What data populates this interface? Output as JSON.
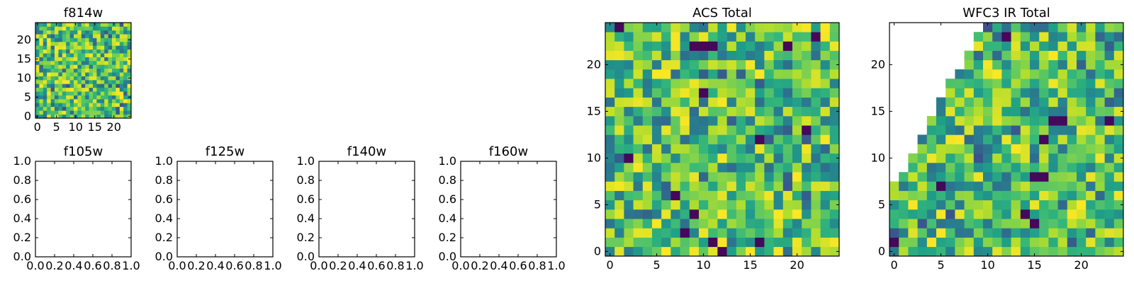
{
  "chart_data": [
    {
      "id": "f814w",
      "type": "heatmap",
      "title": "f814w",
      "xlim": [
        -0.5,
        24.5
      ],
      "ylim": [
        -0.5,
        24.5
      ],
      "xticks": [
        0,
        5,
        10,
        15,
        20
      ],
      "yticks": [
        0,
        5,
        10,
        15,
        20
      ],
      "xtick_labels": [
        "0",
        "5",
        "10",
        "15",
        "20"
      ],
      "ytick_labels": [
        "0",
        "5",
        "10",
        "15",
        "20"
      ],
      "grid_size": 25,
      "colormap": "viridis",
      "pattern": "random",
      "seed": 814
    },
    {
      "id": "f105w",
      "type": "heatmap",
      "title": "f105w",
      "xlim": [
        0,
        1
      ],
      "ylim": [
        0,
        1
      ],
      "xticks": [
        0,
        0.2,
        0.4,
        0.6,
        0.8,
        1.0
      ],
      "yticks": [
        0,
        0.2,
        0.4,
        0.6,
        0.8,
        1.0
      ],
      "xtick_labels": [
        "0.0",
        "0.2",
        "0.4",
        "0.6",
        "0.8",
        "1.0"
      ],
      "ytick_labels": [
        "0.0",
        "0.2",
        "0.4",
        "0.6",
        "0.8",
        "1.0"
      ],
      "empty": true
    },
    {
      "id": "f125w",
      "type": "heatmap",
      "title": "f125w",
      "xlim": [
        0,
        1
      ],
      "ylim": [
        0,
        1
      ],
      "xticks": [
        0,
        0.2,
        0.4,
        0.6,
        0.8,
        1.0
      ],
      "yticks": [
        0,
        0.2,
        0.4,
        0.6,
        0.8,
        1.0
      ],
      "xtick_labels": [
        "0.0",
        "0.2",
        "0.4",
        "0.6",
        "0.8",
        "1.0"
      ],
      "ytick_labels": [
        "0.0",
        "0.2",
        "0.4",
        "0.6",
        "0.8",
        "1.0"
      ],
      "empty": true
    },
    {
      "id": "f140w",
      "type": "heatmap",
      "title": "f140w",
      "xlim": [
        0,
        1
      ],
      "ylim": [
        0,
        1
      ],
      "xticks": [
        0,
        0.2,
        0.4,
        0.6,
        0.8,
        1.0
      ],
      "yticks": [
        0,
        0.2,
        0.4,
        0.6,
        0.8,
        1.0
      ],
      "xtick_labels": [
        "0.0",
        "0.2",
        "0.4",
        "0.6",
        "0.8",
        "1.0"
      ],
      "ytick_labels": [
        "0.0",
        "0.2",
        "0.4",
        "0.6",
        "0.8",
        "1.0"
      ],
      "empty": true
    },
    {
      "id": "f160w",
      "type": "heatmap",
      "title": "f160w",
      "xlim": [
        0,
        1
      ],
      "ylim": [
        0,
        1
      ],
      "xticks": [
        0,
        0.2,
        0.4,
        0.6,
        0.8,
        1.0
      ],
      "yticks": [
        0,
        0.2,
        0.4,
        0.6,
        0.8,
        1.0
      ],
      "xtick_labels": [
        "0.0",
        "0.2",
        "0.4",
        "0.6",
        "0.8",
        "1.0"
      ],
      "ytick_labels": [
        "0.0",
        "0.2",
        "0.4",
        "0.6",
        "0.8",
        "1.0"
      ],
      "empty": true
    },
    {
      "id": "acs-total",
      "type": "heatmap",
      "title": "ACS Total",
      "xlim": [
        -0.5,
        24.5
      ],
      "ylim": [
        -0.5,
        24.5
      ],
      "xticks": [
        0,
        5,
        10,
        15,
        20
      ],
      "yticks": [
        0,
        5,
        10,
        15,
        20
      ],
      "xtick_labels": [
        "0",
        "5",
        "10",
        "15",
        "20"
      ],
      "ytick_labels": [
        "0",
        "5",
        "10",
        "15",
        "20"
      ],
      "grid_size": 25,
      "colormap": "viridis",
      "pattern": "random",
      "seed": 1234,
      "dark_cells": [
        [
          1,
          24
        ],
        [
          9,
          22
        ],
        [
          10,
          22
        ],
        [
          11,
          22
        ],
        [
          19,
          22
        ],
        [
          22,
          23
        ],
        [
          10,
          17
        ],
        [
          21,
          13
        ],
        [
          16,
          12
        ],
        [
          2,
          10
        ],
        [
          7,
          6
        ],
        [
          9,
          4
        ],
        [
          8,
          2
        ],
        [
          11,
          1
        ],
        [
          12,
          0
        ],
        [
          16,
          1
        ]
      ]
    },
    {
      "id": "wfc3-ir-total",
      "type": "heatmap",
      "title": "WFC3 IR Total",
      "xlim": [
        -0.5,
        24.5
      ],
      "ylim": [
        -0.5,
        24.5
      ],
      "xticks": [
        0,
        5,
        10,
        15,
        20
      ],
      "yticks": [
        0,
        5,
        10,
        15,
        20
      ],
      "xtick_labels": [
        "0",
        "5",
        "10",
        "15",
        "20"
      ],
      "ytick_labels": [
        "0",
        "5",
        "10",
        "15",
        "20"
      ],
      "grid_size": 25,
      "colormap": "viridis",
      "pattern": "random",
      "seed": 4321,
      "masked_region": "upper-left triangle (no data)",
      "dark_cells": [
        [
          12,
          23
        ],
        [
          17,
          14
        ],
        [
          18,
          14
        ],
        [
          23,
          14
        ],
        [
          16,
          12
        ],
        [
          15,
          8
        ],
        [
          16,
          8
        ],
        [
          5,
          7
        ],
        [
          14,
          4
        ],
        [
          0,
          1
        ],
        [
          15,
          3
        ]
      ]
    }
  ]
}
